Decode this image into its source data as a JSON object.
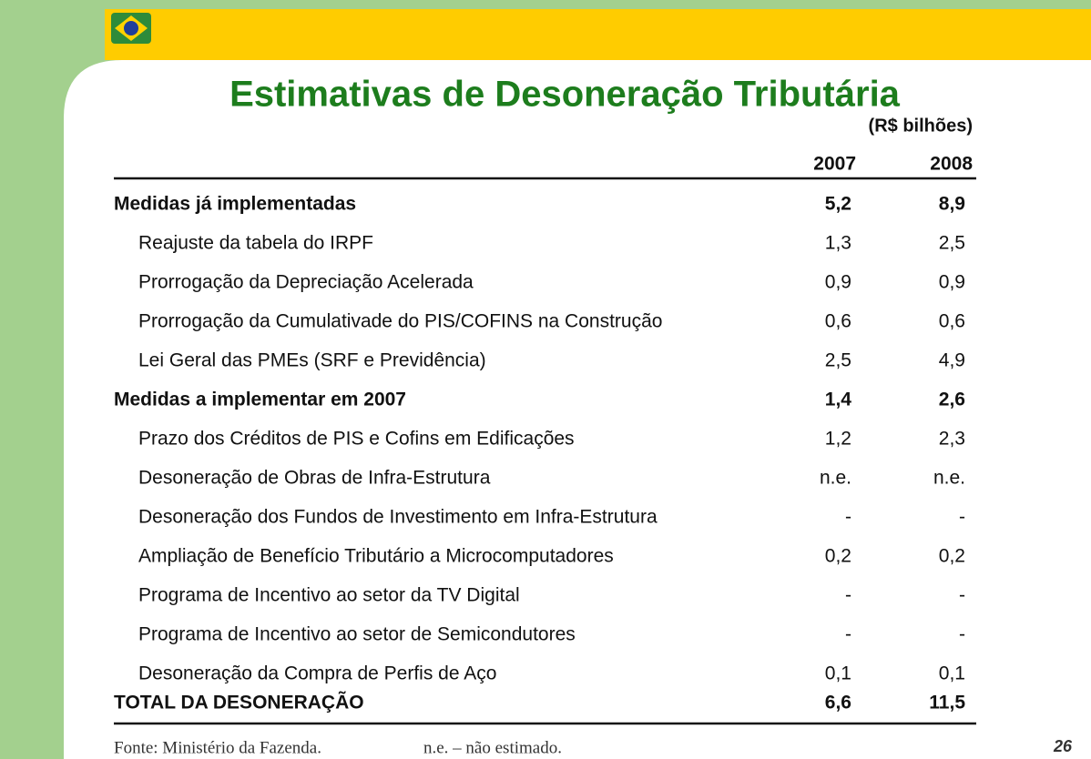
{
  "header": {
    "title": "Estimativas de Desoneração Tributária",
    "unit": "(R$ bilhões)"
  },
  "table": {
    "columns": [
      "2007",
      "2008"
    ],
    "sections": [
      {
        "label": "Medidas já implementadas",
        "values": [
          "5,2",
          "8,9"
        ],
        "rows": [
          [
            "Reajuste da tabela do IRPF",
            "1,3",
            "2,5"
          ],
          [
            "Prorrogação da Depreciação Acelerada",
            "0,9",
            "0,9"
          ],
          [
            "Prorrogação da Cumulativade do PIS/COFINS na Construção",
            "0,6",
            "0,6"
          ],
          [
            "Lei Geral das PMEs   (SRF e Previdência)",
            "2,5",
            "4,9"
          ]
        ]
      },
      {
        "label": "Medidas a implementar em 2007",
        "values": [
          "1,4",
          "2,6"
        ],
        "rows": [
          [
            "Prazo dos Créditos de PIS e Cofins em Edificações",
            "1,2",
            "2,3"
          ],
          [
            "Desoneração de Obras de Infra-Estrutura",
            "n.e.",
            "n.e."
          ],
          [
            "Desoneração dos Fundos de Investimento em Infra-Estrutura",
            "-",
            "-"
          ],
          [
            "Ampliação de Benefício Tributário a Microcomputadores",
            "0,2",
            "0,2"
          ],
          [
            "Programa de Incentivo ao setor da  TV Digital",
            "-",
            "-"
          ],
          [
            "Programa de Incentivo ao setor de Semicondutores",
            "-",
            "-"
          ],
          [
            "Desoneração da Compra de Perfis de Aço",
            "0,1",
            "0,1"
          ]
        ]
      }
    ],
    "total": {
      "label": "TOTAL DA DESONERAÇÃO",
      "values": [
        "6,6",
        "11,5"
      ]
    }
  },
  "footer": {
    "source": "Fonte: Ministério da Fazenda.",
    "note": "n.e. – não estimado.",
    "page": "26"
  }
}
